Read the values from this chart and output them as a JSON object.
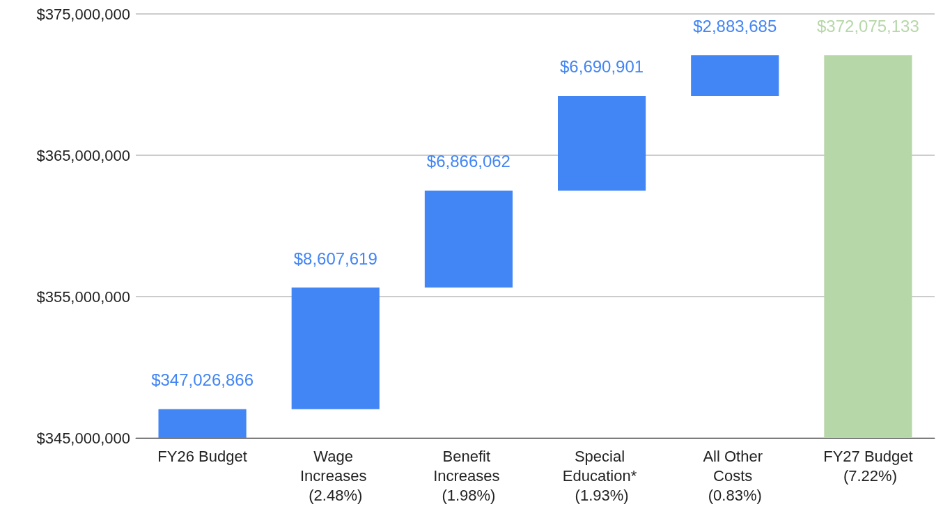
{
  "chart_data": {
    "type": "bar",
    "categories": [
      "FY26 Budget",
      "Wage Increases (2.48%)",
      "Benefit Increases (1.98%)",
      "Special Education* (1.93%)",
      "All Other Costs (0.83%)",
      "FY27 Budget (7.22%)"
    ],
    "values": [
      347026866,
      8607619,
      6866062,
      6690901,
      2883685,
      372075133
    ],
    "base": [
      null,
      347026866,
      355634485,
      362500547,
      369191448,
      null
    ],
    "colors": [
      "#4285f4",
      "#4285f4",
      "#4285f4",
      "#4285f4",
      "#4285f4",
      "#b6d7a8"
    ],
    "ylim": [
      345000000,
      375000000
    ],
    "yticks": [
      {
        "value": 345000000,
        "label": "$345,000,000"
      },
      {
        "value": 355000000,
        "label": "$355,000,000"
      },
      {
        "value": 365000000,
        "label": "$365,000,000"
      },
      {
        "value": 375000000,
        "label": "$375,000,000"
      }
    ],
    "value_labels": [
      "$347,026,866",
      "$8,607,619",
      "$6,866,062",
      "$6,690,901",
      "$2,883,685",
      "$372,075,133"
    ],
    "grid": "y"
  }
}
